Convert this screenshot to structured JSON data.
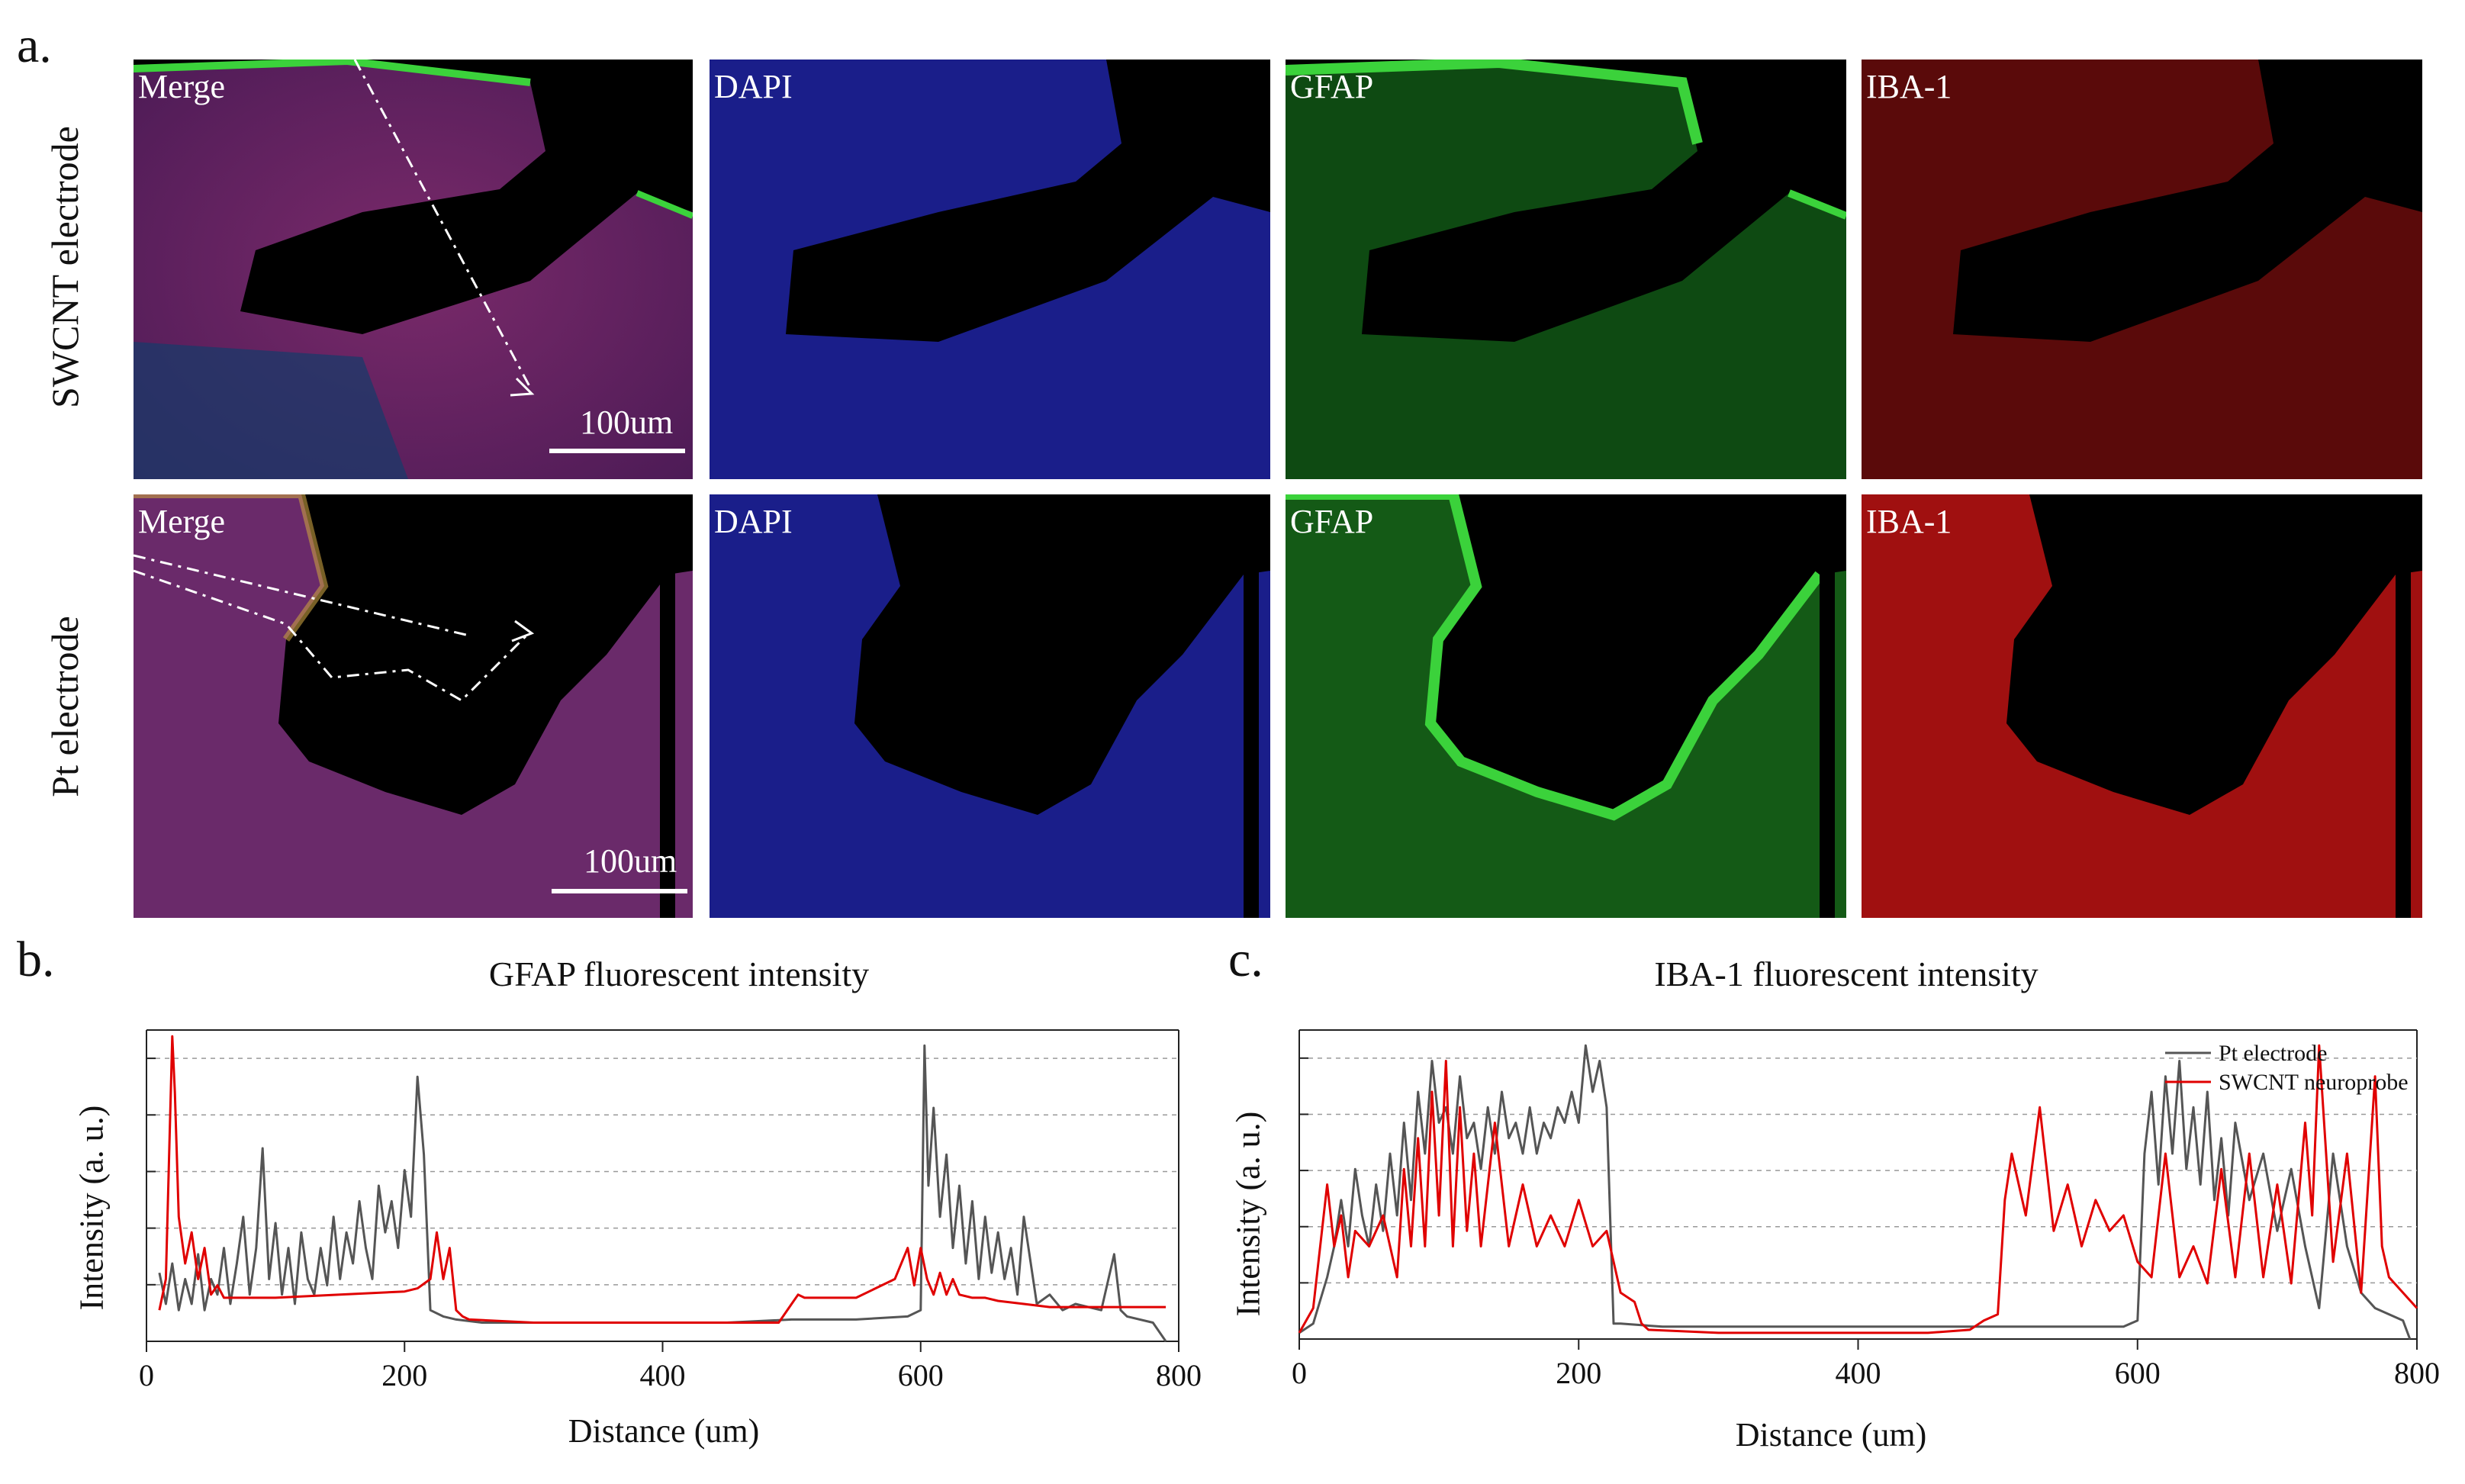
{
  "panel_a": {
    "letter": "a.",
    "row_labels": [
      "SWCNT electrode",
      "Pt electrode"
    ],
    "rows": [
      {
        "channels": [
          "Merge",
          "DAPI",
          "GFAP",
          "IBA-1"
        ],
        "scale_bar": "100um"
      },
      {
        "channels": [
          "Merge",
          "DAPI",
          "GFAP",
          "IBA-1"
        ],
        "scale_bar": "100um"
      }
    ]
  },
  "panel_b": {
    "letter": "b."
  },
  "panel_c": {
    "letter": "c."
  },
  "colors": {
    "pt_line": "#555555",
    "swcnt_line": "#e00000",
    "dapi": "#1a2aff",
    "gfap": "#19c819",
    "iba1": "#d81818"
  },
  "chart_data": [
    {
      "type": "line",
      "title": "GFAP fluorescent  intensity",
      "xlabel": "Distance  (um)",
      "ylabel": "Intensity  (a. u.)",
      "xlim": [
        0,
        800
      ],
      "xticks": [
        0,
        200,
        400,
        600,
        800
      ],
      "grid": true,
      "legend": "none",
      "series": [
        {
          "color": "#555555",
          "x": [
            10,
            15,
            20,
            25,
            30,
            35,
            40,
            45,
            50,
            55,
            60,
            65,
            70,
            75,
            80,
            85,
            90,
            95,
            100,
            105,
            110,
            115,
            120,
            125,
            130,
            135,
            140,
            145,
            150,
            155,
            160,
            165,
            170,
            175,
            180,
            185,
            190,
            195,
            200,
            205,
            210,
            215,
            220,
            230,
            240,
            260,
            300,
            350,
            400,
            450,
            500,
            550,
            590,
            600,
            603,
            606,
            610,
            615,
            620,
            625,
            630,
            635,
            640,
            645,
            650,
            655,
            660,
            665,
            670,
            675,
            680,
            690,
            700,
            710,
            720,
            740,
            750,
            755,
            760,
            780,
            790
          ],
          "y": [
            0.22,
            0.12,
            0.25,
            0.1,
            0.2,
            0.12,
            0.28,
            0.1,
            0.2,
            0.15,
            0.3,
            0.12,
            0.25,
            0.4,
            0.15,
            0.3,
            0.62,
            0.2,
            0.38,
            0.15,
            0.3,
            0.12,
            0.35,
            0.2,
            0.15,
            0.3,
            0.18,
            0.4,
            0.2,
            0.35,
            0.25,
            0.45,
            0.3,
            0.2,
            0.5,
            0.35,
            0.45,
            0.3,
            0.55,
            0.4,
            0.85,
            0.6,
            0.1,
            0.08,
            0.07,
            0.06,
            0.06,
            0.06,
            0.06,
            0.06,
            0.07,
            0.07,
            0.08,
            0.1,
            0.95,
            0.5,
            0.75,
            0.4,
            0.6,
            0.3,
            0.5,
            0.25,
            0.45,
            0.2,
            0.4,
            0.22,
            0.35,
            0.2,
            0.3,
            0.15,
            0.4,
            0.12,
            0.15,
            0.1,
            0.12,
            0.1,
            0.28,
            0.1,
            0.08,
            0.06,
            0.0
          ]
        },
        {
          "color": "#e00000",
          "x": [
            10,
            15,
            20,
            22,
            25,
            30,
            35,
            40,
            45,
            50,
            55,
            60,
            70,
            80,
            100,
            150,
            200,
            210,
            220,
            225,
            230,
            235,
            240,
            245,
            250,
            300,
            400,
            490,
            500,
            505,
            510,
            550,
            580,
            590,
            595,
            600,
            605,
            610,
            615,
            620,
            625,
            630,
            640,
            650,
            660,
            680,
            700,
            720,
            740,
            760,
            790
          ],
          "y": [
            0.1,
            0.2,
            0.98,
            0.8,
            0.4,
            0.25,
            0.35,
            0.2,
            0.3,
            0.15,
            0.18,
            0.14,
            0.14,
            0.14,
            0.14,
            0.15,
            0.16,
            0.17,
            0.2,
            0.35,
            0.2,
            0.3,
            0.1,
            0.08,
            0.07,
            0.06,
            0.06,
            0.06,
            0.12,
            0.15,
            0.14,
            0.14,
            0.2,
            0.3,
            0.18,
            0.3,
            0.2,
            0.15,
            0.22,
            0.15,
            0.2,
            0.15,
            0.14,
            0.14,
            0.13,
            0.12,
            0.11,
            0.11,
            0.11,
            0.11,
            0.11
          ]
        }
      ]
    },
    {
      "type": "line",
      "title": "IBA-1 fluorescent  intensity",
      "xlabel": "Distance  (um)",
      "ylabel": "Intensity  (a. u.)",
      "xlim": [
        0,
        800
      ],
      "xticks": [
        0,
        200,
        400,
        600,
        800
      ],
      "grid": true,
      "legend": "top-right",
      "series": [
        {
          "name": "Pt electrode",
          "color": "#555555",
          "x": [
            0,
            10,
            20,
            25,
            30,
            35,
            40,
            45,
            50,
            55,
            60,
            65,
            70,
            75,
            80,
            85,
            90,
            95,
            100,
            105,
            110,
            115,
            120,
            125,
            130,
            135,
            140,
            145,
            150,
            155,
            160,
            165,
            170,
            175,
            180,
            185,
            190,
            195,
            200,
            205,
            210,
            215,
            220,
            225,
            230,
            260,
            300,
            400,
            500,
            590,
            600,
            605,
            610,
            615,
            620,
            625,
            630,
            635,
            640,
            645,
            650,
            655,
            660,
            665,
            670,
            680,
            690,
            700,
            710,
            720,
            730,
            740,
            750,
            760,
            770,
            780,
            790,
            795
          ],
          "y": [
            0.02,
            0.05,
            0.2,
            0.3,
            0.45,
            0.3,
            0.55,
            0.4,
            0.3,
            0.5,
            0.35,
            0.6,
            0.4,
            0.7,
            0.45,
            0.8,
            0.6,
            0.9,
            0.7,
            0.75,
            0.6,
            0.85,
            0.65,
            0.7,
            0.55,
            0.75,
            0.6,
            0.8,
            0.65,
            0.7,
            0.6,
            0.75,
            0.6,
            0.7,
            0.65,
            0.75,
            0.7,
            0.8,
            0.7,
            0.95,
            0.8,
            0.9,
            0.75,
            0.05,
            0.05,
            0.04,
            0.04,
            0.04,
            0.04,
            0.04,
            0.06,
            0.6,
            0.8,
            0.5,
            0.85,
            0.6,
            0.9,
            0.55,
            0.75,
            0.5,
            0.8,
            0.45,
            0.65,
            0.4,
            0.7,
            0.45,
            0.6,
            0.35,
            0.55,
            0.3,
            0.1,
            0.6,
            0.3,
            0.15,
            0.1,
            0.08,
            0.06,
            0.0
          ]
        },
        {
          "name": "SWCNT neuroprobe",
          "color": "#e00000",
          "x": [
            0,
            10,
            20,
            25,
            30,
            35,
            40,
            50,
            60,
            70,
            75,
            80,
            85,
            90,
            95,
            100,
            105,
            110,
            115,
            120,
            125,
            130,
            140,
            150,
            160,
            170,
            180,
            190,
            200,
            210,
            220,
            230,
            240,
            245,
            250,
            300,
            350,
            400,
            450,
            480,
            490,
            500,
            505,
            510,
            520,
            530,
            540,
            550,
            560,
            570,
            580,
            590,
            600,
            610,
            620,
            630,
            640,
            650,
            660,
            670,
            680,
            690,
            700,
            710,
            720,
            725,
            730,
            740,
            750,
            760,
            770,
            775,
            780,
            790,
            800
          ],
          "y": [
            0.02,
            0.1,
            0.5,
            0.3,
            0.4,
            0.2,
            0.35,
            0.3,
            0.4,
            0.2,
            0.55,
            0.3,
            0.65,
            0.3,
            0.8,
            0.4,
            0.9,
            0.3,
            0.75,
            0.35,
            0.6,
            0.3,
            0.7,
            0.3,
            0.5,
            0.3,
            0.4,
            0.3,
            0.45,
            0.3,
            0.35,
            0.15,
            0.12,
            0.05,
            0.03,
            0.02,
            0.02,
            0.02,
            0.02,
            0.03,
            0.06,
            0.08,
            0.45,
            0.6,
            0.4,
            0.75,
            0.35,
            0.5,
            0.3,
            0.45,
            0.35,
            0.4,
            0.25,
            0.2,
            0.6,
            0.2,
            0.3,
            0.18,
            0.55,
            0.2,
            0.6,
            0.2,
            0.5,
            0.18,
            0.7,
            0.4,
            0.95,
            0.25,
            0.6,
            0.15,
            0.85,
            0.3,
            0.2,
            0.15,
            0.1
          ]
        }
      ]
    }
  ]
}
